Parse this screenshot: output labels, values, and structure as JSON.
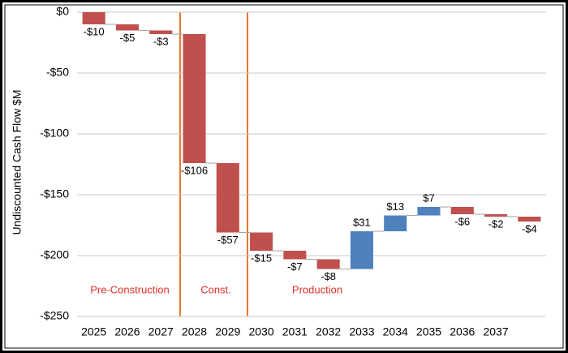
{
  "chart_data": {
    "type": "waterfall",
    "y_label": "Undiscounted Cash Flow $M",
    "categories": [
      "2025",
      "2026",
      "2027",
      "2028",
      "2029",
      "2030",
      "2031",
      "2032",
      "2033",
      "2034",
      "2035",
      "2036",
      "2037",
      null
    ],
    "values": [
      -10,
      -5,
      -3,
      -106,
      -57,
      -15,
      -7,
      -8,
      31,
      13,
      7,
      -6,
      -2,
      -4
    ],
    "value_labels": [
      "-$10",
      "-$5",
      "-$3",
      "-$106",
      "-$57",
      "-$15",
      "-$7",
      "-$8",
      "$31",
      "$13",
      "$7",
      "-$6",
      "-$2",
      "-$4"
    ],
    "color_negative": "#c0504d",
    "color_positive": "#4f81bd",
    "ylim": [
      -250,
      0
    ],
    "yticks": [
      {
        "value": 0,
        "label": "$0"
      },
      {
        "value": -50,
        "label": "-$50"
      },
      {
        "value": -100,
        "label": "-$100"
      },
      {
        "value": -150,
        "label": "-$150"
      },
      {
        "value": -200,
        "label": "-$200"
      },
      {
        "value": -250,
        "label": "-$250"
      }
    ],
    "grid": true,
    "annotations": [
      "Pre-Construction",
      "Const.",
      "Production"
    ]
  }
}
